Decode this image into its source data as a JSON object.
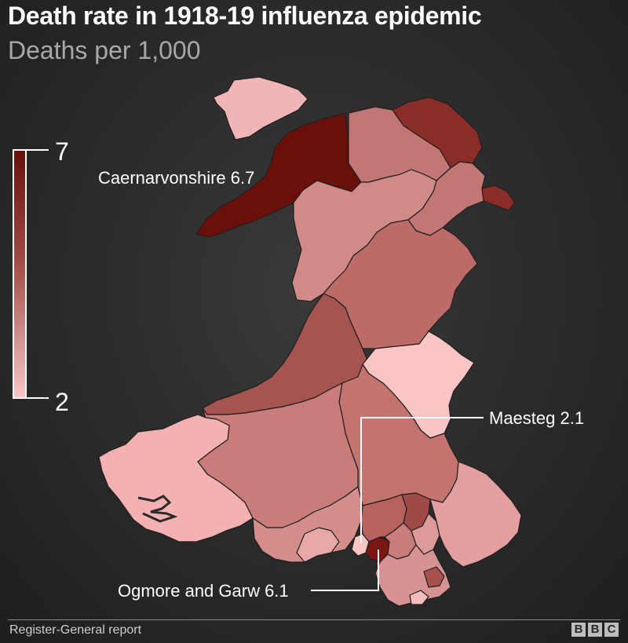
{
  "title": "Death rate in 1918-19 influenza epidemic",
  "subtitle": "Deaths per 1,000",
  "legend": {
    "min_label": "2",
    "max_label": "7",
    "min_value": 2,
    "max_value": 7
  },
  "annotations": {
    "caernarvonshire": "Caernarvonshire 6.7",
    "maesteg": "Maesteg 2.1",
    "ogmore": "Ogmore and Garw 6.1"
  },
  "colors": {
    "darkest": "#6b0f0a",
    "dark": "#8e2e2a",
    "mid_dark": "#a65050",
    "mid": "#bb6e6c",
    "light": "#d49492",
    "lightest": "#fbc5c5"
  },
  "source": "Register-General report",
  "logo": [
    "B",
    "B",
    "C"
  ]
}
